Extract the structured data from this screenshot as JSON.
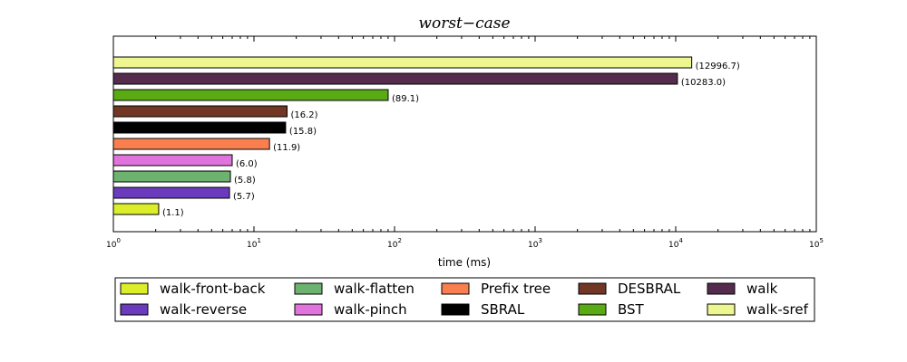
{
  "chart_data": {
    "type": "bar",
    "orientation": "horizontal",
    "title": "worst−case",
    "xlabel": "time (ms)",
    "ylabel": "",
    "xscale": "log",
    "xlim": [
      1,
      100000
    ],
    "x_ticks": [
      {
        "value": 1,
        "base": "10",
        "exp": "0"
      },
      {
        "value": 10,
        "base": "10",
        "exp": "1"
      },
      {
        "value": 100,
        "base": "10",
        "exp": "2"
      },
      {
        "value": 1000,
        "base": "10",
        "exp": "3"
      },
      {
        "value": 10000,
        "base": "10",
        "exp": "4"
      },
      {
        "value": 100000,
        "base": "10",
        "exp": "5"
      }
    ],
    "grid": false,
    "legend_position": "bottom",
    "series": [
      {
        "name": "walk-front-back",
        "value": 2.1,
        "label": "(1.1)",
        "color": "#dcee2a"
      },
      {
        "name": "walk-reverse",
        "value": 6.7,
        "label": "(5.7)",
        "color": "#6b3bbe"
      },
      {
        "name": "walk-flatten",
        "value": 6.8,
        "label": "(5.8)",
        "color": "#6db36f"
      },
      {
        "name": "walk-pinch",
        "value": 7.0,
        "label": "(6.0)",
        "color": "#e173dd"
      },
      {
        "name": "Prefix tree",
        "value": 12.9,
        "label": "(11.9)",
        "color": "#f97f4f"
      },
      {
        "name": "SBRAL",
        "value": 16.8,
        "label": "(15.8)",
        "color": "#000000"
      },
      {
        "name": "DESBRAL",
        "value": 17.2,
        "label": "(16.2)",
        "color": "#713724"
      },
      {
        "name": "BST",
        "value": 90.1,
        "label": "(89.1)",
        "color": "#5aab13"
      },
      {
        "name": "walk",
        "value": 10284.0,
        "label": "(10283.0)",
        "color": "#562c4e"
      },
      {
        "name": "walk-sref",
        "value": 12997.7,
        "label": "(12996.7)",
        "color": "#eef68f"
      }
    ],
    "legend_order": [
      "walk-front-back",
      "walk-flatten",
      "Prefix tree",
      "DESBRAL",
      "walk",
      "walk-reverse",
      "walk-pinch",
      "SBRAL",
      "BST",
      "walk-sref"
    ]
  }
}
